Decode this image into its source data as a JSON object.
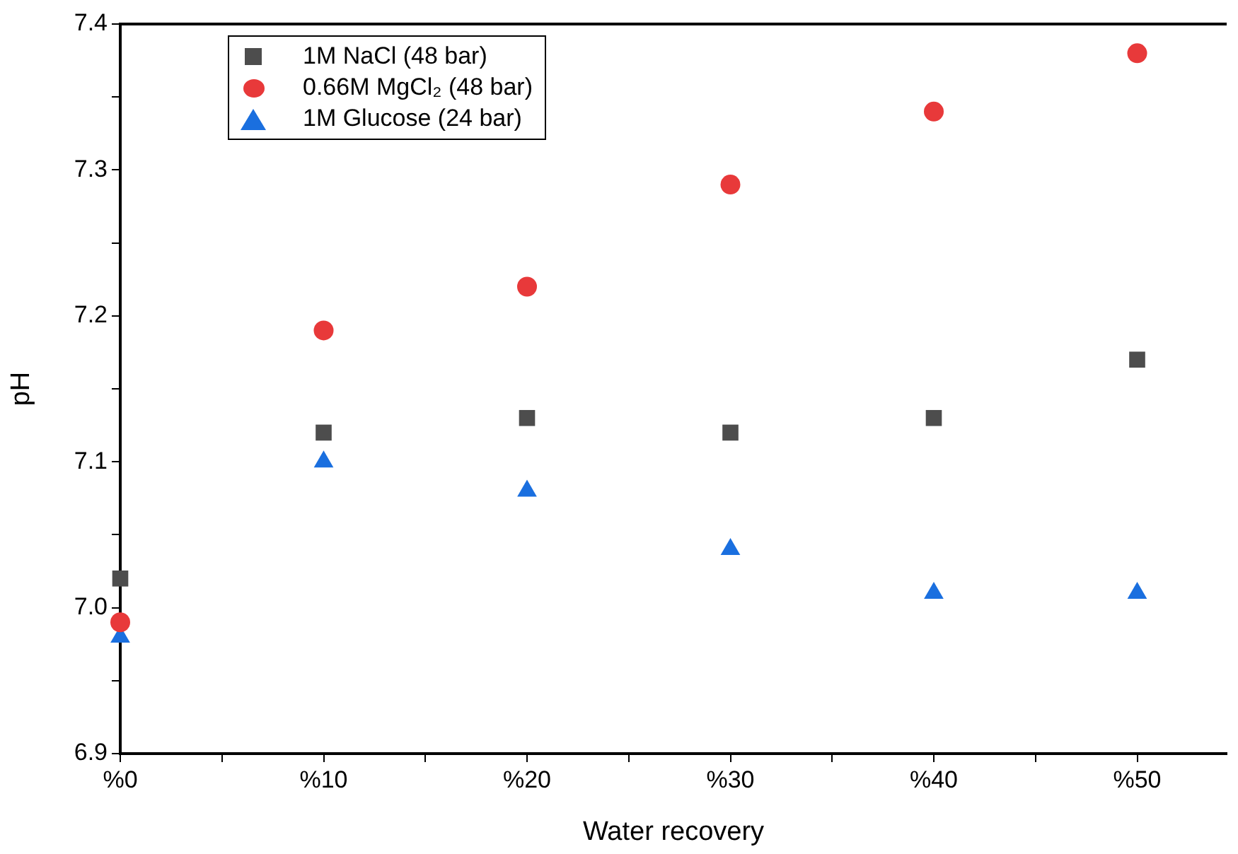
{
  "chart_data": {
    "type": "scatter",
    "xlabel": "Water recovery",
    "ylabel": "pH",
    "x": [
      0,
      10,
      20,
      30,
      40,
      50
    ],
    "xlim": [
      0,
      54.4
    ],
    "xticks": [
      {
        "value": 0,
        "label": "%0"
      },
      {
        "value": 5,
        "label": null
      },
      {
        "value": 10,
        "label": "%10"
      },
      {
        "value": 15,
        "label": null
      },
      {
        "value": 20,
        "label": "%20"
      },
      {
        "value": 25,
        "label": null
      },
      {
        "value": 30,
        "label": "%30"
      },
      {
        "value": 35,
        "label": null
      },
      {
        "value": 40,
        "label": "%40"
      },
      {
        "value": 45,
        "label": null
      },
      {
        "value": 50,
        "label": "%50"
      }
    ],
    "ylim": [
      6.9,
      7.4
    ],
    "yticks": [
      {
        "value": 6.9,
        "label": "6.9"
      },
      {
        "value": 6.95,
        "label": null
      },
      {
        "value": 7.0,
        "label": "7.0"
      },
      {
        "value": 7.05,
        "label": null
      },
      {
        "value": 7.1,
        "label": "7.1"
      },
      {
        "value": 7.15,
        "label": null
      },
      {
        "value": 7.2,
        "label": "7.2"
      },
      {
        "value": 7.25,
        "label": null
      },
      {
        "value": 7.3,
        "label": "7.3"
      },
      {
        "value": 7.35,
        "label": null
      },
      {
        "value": 7.4,
        "label": "7.4"
      }
    ],
    "series": [
      {
        "name": "1M NaCl (48 bar)",
        "color": "#4d4d4d",
        "marker": "square",
        "values": [
          7.02,
          7.12,
          7.13,
          7.12,
          7.13,
          7.17
        ]
      },
      {
        "name": "0.66M MgCl₂ (48 bar)",
        "color": "#e8393a",
        "marker": "circle",
        "values": [
          6.99,
          7.19,
          7.22,
          7.29,
          7.34,
          7.38
        ]
      },
      {
        "name": "1M Glucose (24 bar)",
        "color": "#1a6fdf",
        "marker": "triangle",
        "values": [
          6.98,
          7.1,
          7.08,
          7.04,
          7.01,
          7.01
        ]
      }
    ],
    "grid": false,
    "legend": "top left"
  }
}
